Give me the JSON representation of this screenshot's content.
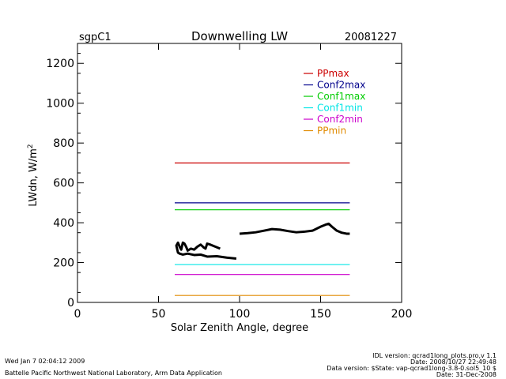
{
  "header": {
    "site": "sgpC1",
    "title": "Downwelling LW",
    "date": "20081227"
  },
  "footer": {
    "left": [
      "Wed Jan  7 02:04:12 2009",
      "Battelle Pacific Northwest National Laboratory, Arm Data Application"
    ],
    "right": [
      "IDL version: qcrad1long_plots.pro,v 1.1",
      "Date: 2008/10/27 22:49:48",
      "Data version: $State: vap-qcrad1long-3.8-0.sol5_10 $",
      "Date: 31-Dec-2008"
    ]
  },
  "chart_data": {
    "type": "line",
    "title": "Downwelling LW",
    "xlabel": "Solar Zenith Angle, degree",
    "ylabel_base": "LWdn, W/m",
    "ylabel_sup": "2",
    "xlim": [
      0,
      200
    ],
    "ylim": [
      0,
      1300
    ],
    "xticks": [
      0,
      50,
      100,
      150,
      200
    ],
    "yticks": [
      0,
      200,
      400,
      600,
      800,
      1000,
      1200
    ],
    "legend_position": "top-right",
    "series": [
      {
        "name": "PPmax",
        "color": "#cc0000",
        "x": [
          60,
          168
        ],
        "y": [
          700,
          700
        ]
      },
      {
        "name": "Conf2max",
        "color": "#00008b",
        "x": [
          60,
          168
        ],
        "y": [
          500,
          500
        ]
      },
      {
        "name": "Conf1max",
        "color": "#00cc00",
        "x": [
          60,
          168
        ],
        "y": [
          465,
          465
        ]
      },
      {
        "name": "Conf1min",
        "color": "#00e5e5",
        "x": [
          60,
          168
        ],
        "y": [
          190,
          190
        ]
      },
      {
        "name": "Conf2min",
        "color": "#cc00cc",
        "x": [
          60,
          168
        ],
        "y": [
          140,
          140
        ]
      },
      {
        "name": "PPmin",
        "color": "#e08a00",
        "x": [
          60,
          168
        ],
        "y": [
          35,
          35
        ]
      }
    ],
    "measured": {
      "color": "#000000",
      "segments": [
        {
          "x": [
            98,
            92,
            86,
            80,
            76,
            72,
            68,
            65,
            63,
            62,
            61,
            62,
            63,
            64,
            65,
            66,
            67,
            68,
            70,
            72,
            74,
            76,
            78,
            79,
            80,
            82,
            85,
            88
          ],
          "y": [
            220,
            225,
            232,
            230,
            240,
            238,
            245,
            240,
            245,
            250,
            285,
            300,
            280,
            265,
            300,
            295,
            280,
            260,
            270,
            265,
            280,
            290,
            275,
            270,
            295,
            290,
            280,
            270
          ]
        },
        {
          "x": [
            100,
            105,
            110,
            115,
            120,
            125,
            130,
            135,
            140,
            145,
            150,
            153,
            155,
            157,
            160,
            163,
            166,
            168
          ],
          "y": [
            345,
            348,
            352,
            360,
            368,
            365,
            358,
            352,
            355,
            360,
            380,
            390,
            395,
            380,
            360,
            350,
            345,
            345
          ]
        }
      ]
    }
  }
}
